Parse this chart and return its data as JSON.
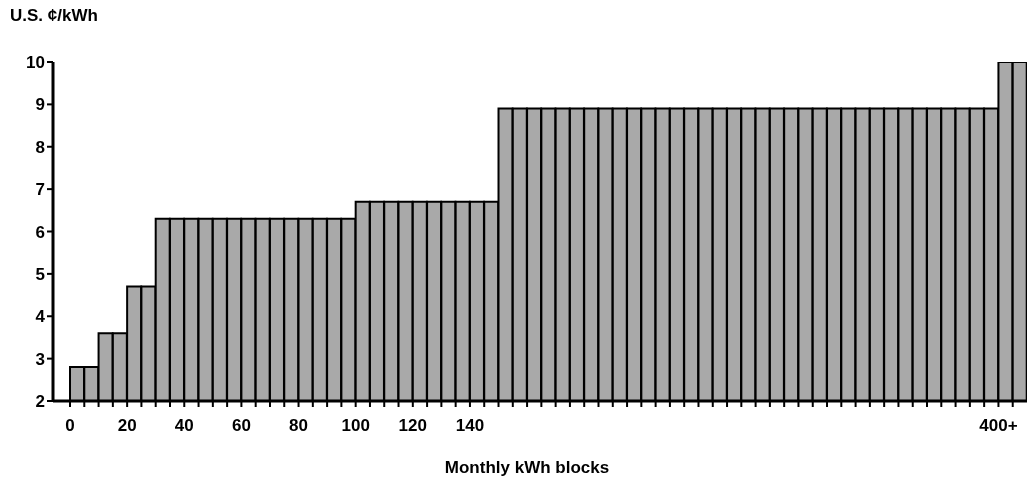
{
  "chart_data": {
    "type": "bar",
    "ylabel": "U.S. ¢/kWh",
    "xlabel": "Monthly kWh blocks",
    "categories": [
      "0",
      null,
      null,
      null,
      "20",
      null,
      null,
      null,
      "40",
      null,
      null,
      null,
      "60",
      null,
      null,
      null,
      "80",
      null,
      null,
      null,
      "100",
      null,
      null,
      null,
      "120",
      null,
      null,
      null,
      "140",
      null,
      null,
      null,
      null,
      null,
      null,
      null,
      null,
      null,
      null,
      null,
      null,
      null,
      null,
      null,
      null,
      null,
      null,
      null,
      null,
      null,
      null,
      null,
      null,
      null,
      null,
      null,
      null,
      null,
      null,
      null,
      null,
      null,
      null,
      null,
      null,
      "400+",
      null
    ],
    "values": [
      2.8,
      2.8,
      3.6,
      3.6,
      4.7,
      4.7,
      6.3,
      6.3,
      6.3,
      6.3,
      6.3,
      6.3,
      6.3,
      6.3,
      6.3,
      6.3,
      6.3,
      6.3,
      6.3,
      6.3,
      6.7,
      6.7,
      6.7,
      6.7,
      6.7,
      6.7,
      6.7,
      6.7,
      6.7,
      6.7,
      8.9,
      8.9,
      8.9,
      8.9,
      8.9,
      8.9,
      8.9,
      8.9,
      8.9,
      8.9,
      8.9,
      8.9,
      8.9,
      8.9,
      8.9,
      8.9,
      8.9,
      8.9,
      8.9,
      8.9,
      8.9,
      8.9,
      8.9,
      8.9,
      8.9,
      8.9,
      8.9,
      8.9,
      8.9,
      8.9,
      8.9,
      8.9,
      8.9,
      8.9,
      8.9,
      10,
      10
    ],
    "color": "#a9a9a9",
    "ylim": [
      2,
      10
    ],
    "yticks": [
      2,
      3,
      4,
      5,
      6,
      7,
      8,
      9,
      10
    ]
  }
}
